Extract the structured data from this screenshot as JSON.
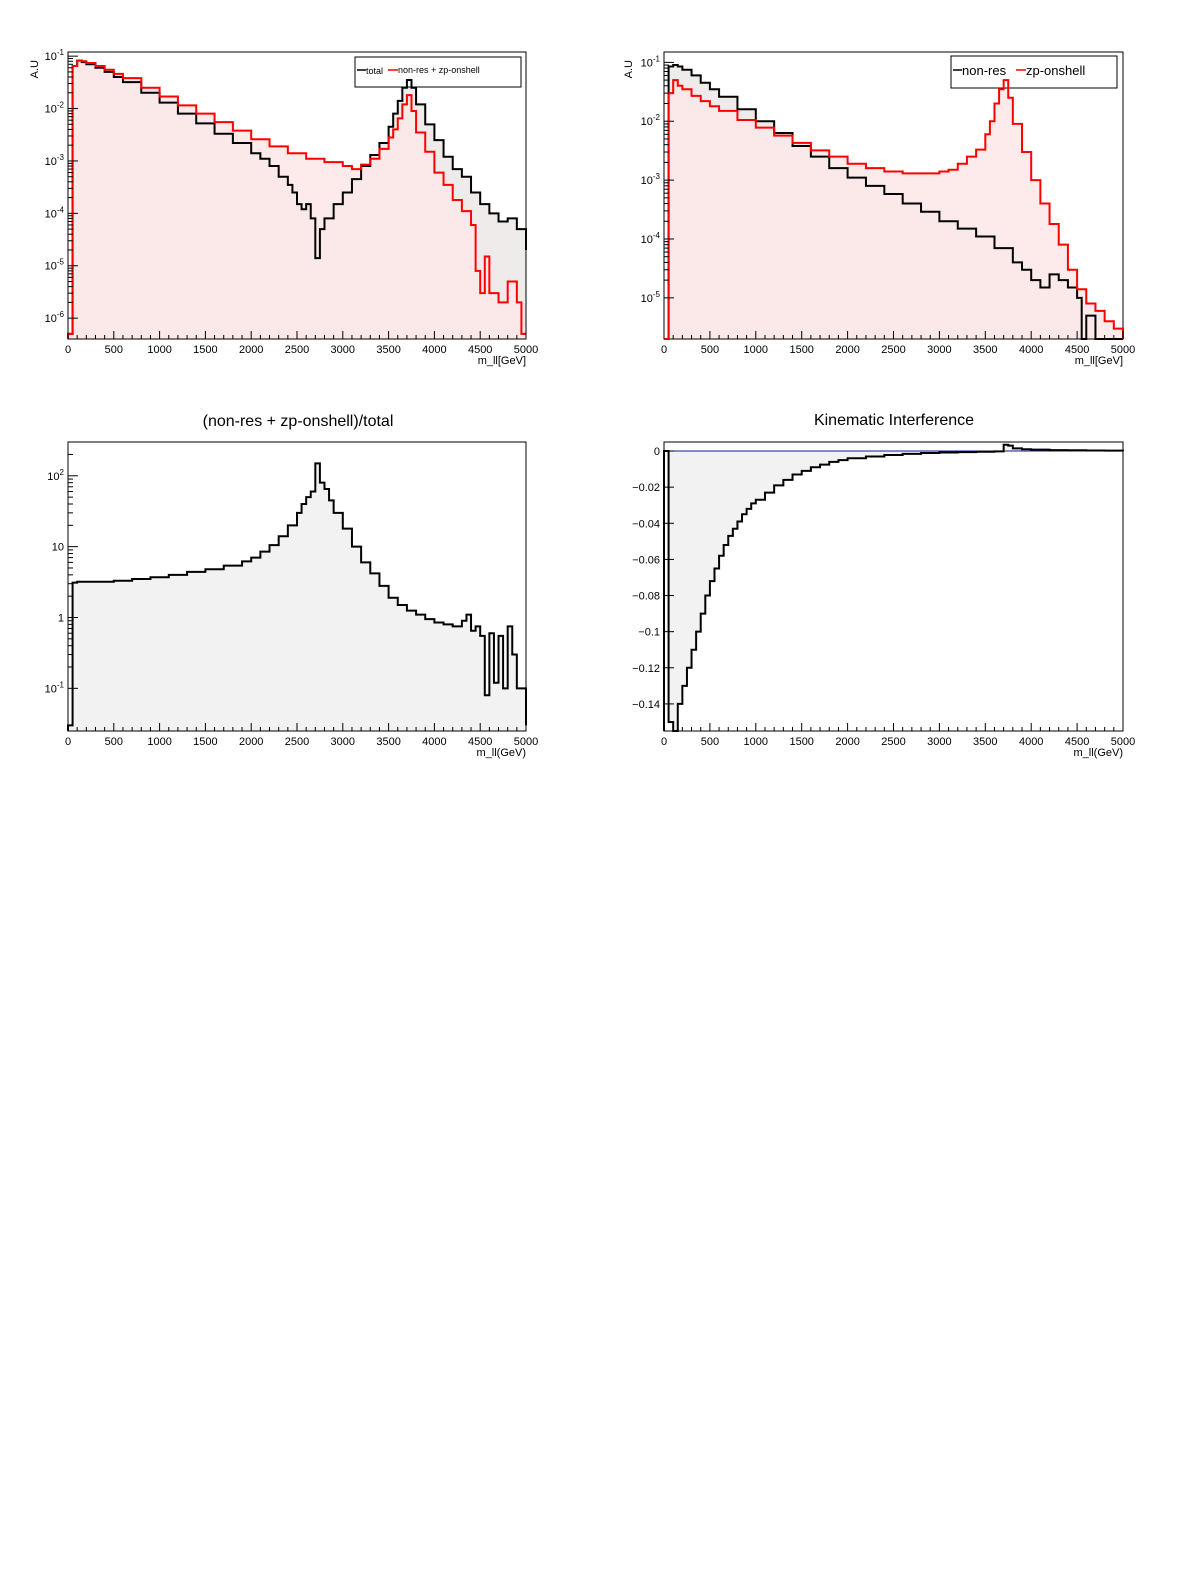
{
  "chart_data": [
    {
      "id": "p1",
      "type": "line",
      "title": "",
      "xlabel": "m_ll[GeV]",
      "ylabel": "A.U",
      "xlim": [
        0,
        5000
      ],
      "ylim": [
        4e-07,
        0.12
      ],
      "yscale": "log",
      "xticks": [
        "0",
        "500",
        "1000",
        "1500",
        "2000",
        "2500",
        "3000",
        "3500",
        "4000",
        "4500",
        "5000"
      ],
      "yticks": [
        [
          "10",
          "-1"
        ],
        [
          "10",
          "-2"
        ],
        [
          "10",
          "-3"
        ],
        [
          "10",
          "-4"
        ],
        [
          "10",
          "-5"
        ],
        [
          "10",
          "-6"
        ]
      ],
      "legend_position": "top-right",
      "series": [
        {
          "name": "total",
          "color": "#000000",
          "fill": "#ede8e8",
          "x": [
            0,
            50,
            100,
            150,
            200,
            300,
            400,
            500,
            600,
            800,
            1000,
            1200,
            1400,
            1600,
            1800,
            2000,
            2100,
            2200,
            2300,
            2400,
            2450,
            2500,
            2550,
            2600,
            2650,
            2700,
            2750,
            2800,
            2900,
            3000,
            3100,
            3200,
            3300,
            3400,
            3500,
            3550,
            3600,
            3650,
            3700,
            3750,
            3800,
            3900,
            4000,
            4100,
            4200,
            4300,
            4400,
            4500,
            4600,
            4700,
            4800,
            4900,
            5000
          ],
          "y": [
            5e-07,
            0.065,
            0.082,
            0.077,
            0.07,
            0.06,
            0.05,
            0.04,
            0.032,
            0.02,
            0.013,
            0.008,
            0.0052,
            0.0033,
            0.0022,
            0.0014,
            0.0011,
            0.0008,
            0.0005,
            0.00035,
            0.00025,
            0.00015,
            0.00012,
            0.00015,
            8e-05,
            1.4e-05,
            5e-05,
            8e-05,
            0.00015,
            0.00025,
            0.00045,
            0.0008,
            0.0013,
            0.0022,
            0.0045,
            0.008,
            0.014,
            0.025,
            0.035,
            0.025,
            0.012,
            0.005,
            0.0025,
            0.0012,
            0.0007,
            0.0005,
            0.00025,
            0.00015,
            0.0001,
            7e-05,
            8e-05,
            5e-05,
            2e-05
          ]
        },
        {
          "name": "non-res + zp-onshell",
          "color": "#ff0000",
          "fill": "#fde8e8",
          "x": [
            0,
            50,
            100,
            150,
            200,
            300,
            400,
            500,
            600,
            800,
            1000,
            1200,
            1400,
            1600,
            1800,
            2000,
            2200,
            2400,
            2600,
            2800,
            3000,
            3100,
            3200,
            3300,
            3400,
            3500,
            3550,
            3600,
            3650,
            3700,
            3750,
            3800,
            3900,
            4000,
            4100,
            4200,
            4300,
            4400,
            4450,
            4500,
            4550,
            4600,
            4700,
            4800,
            4900,
            4950,
            5000
          ],
          "y": [
            5e-07,
            0.065,
            0.082,
            0.08,
            0.074,
            0.065,
            0.055,
            0.046,
            0.038,
            0.025,
            0.017,
            0.0115,
            0.008,
            0.0055,
            0.0038,
            0.0026,
            0.0019,
            0.0014,
            0.0011,
            0.00095,
            0.0008,
            0.0007,
            0.00085,
            0.0011,
            0.0017,
            0.0028,
            0.004,
            0.0065,
            0.012,
            0.018,
            0.009,
            0.0035,
            0.0015,
            0.0006,
            0.00035,
            0.00018,
            0.00011,
            6e-05,
            8e-06,
            3e-06,
            1.5e-05,
            3e-06,
            2e-06,
            5e-06,
            2e-06,
            5e-07,
            5e-07
          ]
        }
      ]
    },
    {
      "id": "p2",
      "type": "line",
      "title": "",
      "xlabel": "m_ll[GeV]",
      "ylabel": "A.U",
      "xlim": [
        0,
        5000
      ],
      "ylim": [
        2e-06,
        0.15
      ],
      "yscale": "log",
      "xticks": [
        "0",
        "500",
        "1000",
        "1500",
        "2000",
        "2500",
        "3000",
        "3500",
        "4000",
        "4500",
        "5000"
      ],
      "yticks": [
        [
          "10",
          "-1"
        ],
        [
          "10",
          "-2"
        ],
        [
          "10",
          "-3"
        ],
        [
          "10",
          "-4"
        ],
        [
          "10",
          "-5"
        ]
      ],
      "legend_position": "top-right",
      "series": [
        {
          "name": "non-res",
          "color": "#000000",
          "fill": "#ede8e8",
          "x": [
            0,
            50,
            100,
            150,
            200,
            300,
            400,
            500,
            600,
            800,
            1000,
            1200,
            1400,
            1600,
            1800,
            2000,
            2200,
            2400,
            2600,
            2800,
            3000,
            3200,
            3400,
            3600,
            3800,
            3900,
            4000,
            4100,
            4200,
            4300,
            4400,
            4500,
            4550,
            4600,
            4700,
            4800,
            4900,
            5000
          ],
          "y": [
            2e-06,
            0.085,
            0.09,
            0.085,
            0.075,
            0.06,
            0.045,
            0.035,
            0.026,
            0.016,
            0.01,
            0.0063,
            0.0038,
            0.0025,
            0.0016,
            0.0011,
            0.0008,
            0.00058,
            0.0004,
            0.00029,
            0.0002,
            0.00015,
            0.00011,
            7e-05,
            4e-05,
            3e-05,
            2e-05,
            1.5e-05,
            2.5e-05,
            2e-05,
            1.5e-05,
            1e-05,
            2e-06,
            5e-06,
            2e-06,
            2e-06,
            2e-06,
            2e-06
          ]
        },
        {
          "name": "zp-onshell",
          "color": "#ff0000",
          "fill": "#fde8e8",
          "x": [
            0,
            50,
            100,
            150,
            200,
            300,
            400,
            500,
            600,
            800,
            1000,
            1200,
            1400,
            1600,
            1800,
            2000,
            2200,
            2400,
            2600,
            2800,
            3000,
            3100,
            3200,
            3300,
            3400,
            3500,
            3550,
            3600,
            3650,
            3700,
            3750,
            3800,
            3900,
            4000,
            4100,
            4200,
            4300,
            4400,
            4500,
            4600,
            4700,
            4800,
            4900,
            5000
          ],
          "y": [
            2e-06,
            0.03,
            0.05,
            0.04,
            0.035,
            0.027,
            0.022,
            0.018,
            0.015,
            0.0105,
            0.0078,
            0.0057,
            0.0043,
            0.0032,
            0.0025,
            0.0019,
            0.0016,
            0.0014,
            0.0013,
            0.0013,
            0.0014,
            0.0015,
            0.0019,
            0.0025,
            0.0033,
            0.006,
            0.01,
            0.02,
            0.035,
            0.05,
            0.025,
            0.009,
            0.003,
            0.001,
            0.0004,
            0.00018,
            8e-05,
            3e-05,
            1.4e-05,
            8e-06,
            6e-06,
            4e-06,
            3e-06,
            2e-06
          ]
        }
      ]
    },
    {
      "id": "p3",
      "type": "line",
      "title": "(non-res + zp-onshell)/total",
      "xlabel": "m_ll(GeV)",
      "ylabel": "",
      "xlim": [
        0,
        5000
      ],
      "ylim": [
        0.025,
        300
      ],
      "yscale": "log",
      "xticks": [
        "0",
        "500",
        "1000",
        "1500",
        "2000",
        "2500",
        "3000",
        "3500",
        "4000",
        "4500",
        "5000"
      ],
      "yticks": [
        [
          "10",
          "2"
        ],
        [
          "10",
          ""
        ],
        [
          "1",
          ""
        ],
        [
          "10",
          "-1"
        ]
      ],
      "series": [
        {
          "name": "",
          "color": "#000000",
          "fill": "#f0f0f0",
          "x": [
            0,
            50,
            100,
            300,
            500,
            700,
            900,
            1100,
            1300,
            1500,
            1700,
            1900,
            2000,
            2100,
            2200,
            2300,
            2400,
            2500,
            2550,
            2600,
            2650,
            2700,
            2750,
            2800,
            2850,
            2900,
            3000,
            3100,
            3200,
            3300,
            3400,
            3500,
            3600,
            3700,
            3800,
            3900,
            4000,
            4100,
            4200,
            4300,
            4350,
            4400,
            4450,
            4500,
            4550,
            4600,
            4650,
            4700,
            4750,
            4800,
            4850,
            4900,
            4950,
            5000
          ],
          "y": [
            0.03,
            3.1,
            3.2,
            3.2,
            3.3,
            3.5,
            3.7,
            4.0,
            4.4,
            4.8,
            5.4,
            6.2,
            7.0,
            8.5,
            10.5,
            14,
            20,
            30,
            40,
            50,
            60,
            150,
            80,
            65,
            45,
            30,
            18,
            10,
            6,
            4.2,
            2.8,
            1.9,
            1.5,
            1.25,
            1.1,
            0.95,
            0.85,
            0.8,
            0.75,
            0.9,
            1.1,
            0.65,
            0.75,
            0.55,
            0.08,
            0.6,
            0.12,
            0.55,
            0.1,
            0.75,
            0.3,
            0.1,
            0.1,
            0.03
          ]
        }
      ]
    },
    {
      "id": "p4",
      "type": "line",
      "title": "Kinematic Interference",
      "xlabel": "m_ll(GeV)",
      "ylabel": "",
      "xlim": [
        0,
        5000
      ],
      "ylim": [
        -0.155,
        0.005
      ],
      "yscale": "linear",
      "xticks": [
        "0",
        "500",
        "1000",
        "1500",
        "2000",
        "2500",
        "3000",
        "3500",
        "4000",
        "4500",
        "5000"
      ],
      "yticks": [
        "0",
        "−0.02",
        "−0.04",
        "−0.06",
        "−0.08",
        "−0.1",
        "−0.12",
        "−0.14"
      ],
      "series": [
        {
          "name": "",
          "color": "#000000",
          "fill": "#f0f0f0",
          "x": [
            0,
            50,
            100,
            150,
            200,
            250,
            300,
            350,
            400,
            450,
            500,
            550,
            600,
            650,
            700,
            750,
            800,
            850,
            900,
            950,
            1000,
            1100,
            1200,
            1300,
            1400,
            1500,
            1600,
            1700,
            1800,
            1900,
            2000,
            2200,
            2400,
            2600,
            2800,
            3000,
            3200,
            3400,
            3600,
            3700,
            3750,
            3800,
            3900,
            4000,
            4200,
            4400,
            4600,
            4800,
            5000
          ],
          "y": [
            0,
            -0.15,
            -0.155,
            -0.14,
            -0.13,
            -0.12,
            -0.11,
            -0.1,
            -0.09,
            -0.08,
            -0.072,
            -0.065,
            -0.058,
            -0.052,
            -0.047,
            -0.043,
            -0.039,
            -0.035,
            -0.032,
            -0.029,
            -0.027,
            -0.023,
            -0.019,
            -0.016,
            -0.013,
            -0.011,
            -0.009,
            -0.0075,
            -0.006,
            -0.005,
            -0.004,
            -0.003,
            -0.0022,
            -0.0016,
            -0.0011,
            -0.0008,
            -0.0006,
            -0.0004,
            -0.0002,
            0.0035,
            0.003,
            0.0015,
            0.001,
            0.0008,
            0.0005,
            0.0004,
            0.0003,
            0.0002,
            0.0001
          ]
        }
      ]
    }
  ]
}
